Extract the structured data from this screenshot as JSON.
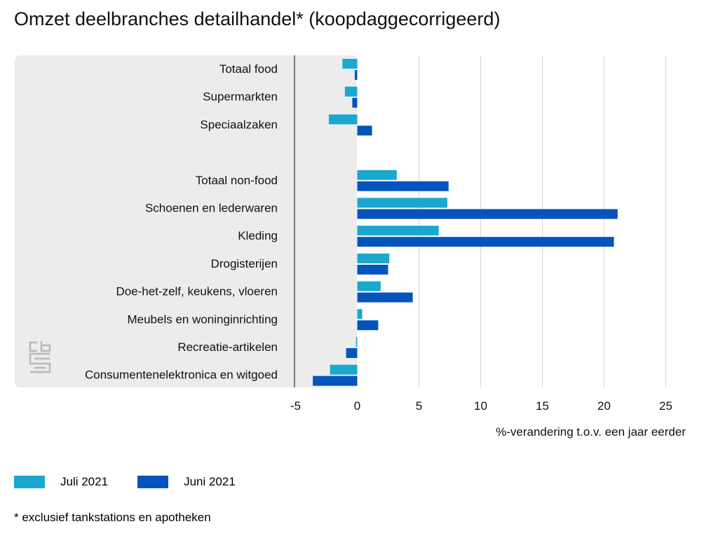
{
  "title": "Omzet deelbranches detailhandel* (koopdaggecorrigeerd)",
  "footnote": "* exclusief tankstations en apotheken",
  "logo": "cbs",
  "colors": {
    "juli": "#1aa8cf",
    "juni": "#0454be",
    "panel": "#ececec",
    "grid": "#d9d9d9",
    "axis": "#555555"
  },
  "chart_data": {
    "type": "bar",
    "orientation": "horizontal",
    "xlabel": "%-verandering t.o.v. een jaar eerder",
    "xlim": [
      -5,
      26
    ],
    "xticks": [
      -5,
      0,
      5,
      10,
      15,
      20,
      25
    ],
    "grid": true,
    "legend_position": "bottom-left",
    "categories": [
      "Totaal food",
      "Supermarkten",
      "Speciaalzaken",
      "",
      "Totaal non-food",
      "Schoenen en lederwaren",
      "Kleding",
      "Drogisterijen",
      "Doe-het-zelf, keukens, vloeren",
      "Meubels en woninginrichting",
      "Recreatie-artikelen",
      "Consumentenelektronica en witgoed"
    ],
    "series": [
      {
        "name": "Juli 2021",
        "values": [
          -1.2,
          -1.0,
          -2.3,
          null,
          3.2,
          7.3,
          6.6,
          2.6,
          1.9,
          0.4,
          -0.1,
          -2.2
        ]
      },
      {
        "name": "Juni 2021",
        "values": [
          -0.2,
          -0.4,
          1.2,
          null,
          7.4,
          21.1,
          20.8,
          2.5,
          4.5,
          1.7,
          -0.9,
          -3.6
        ]
      }
    ]
  }
}
